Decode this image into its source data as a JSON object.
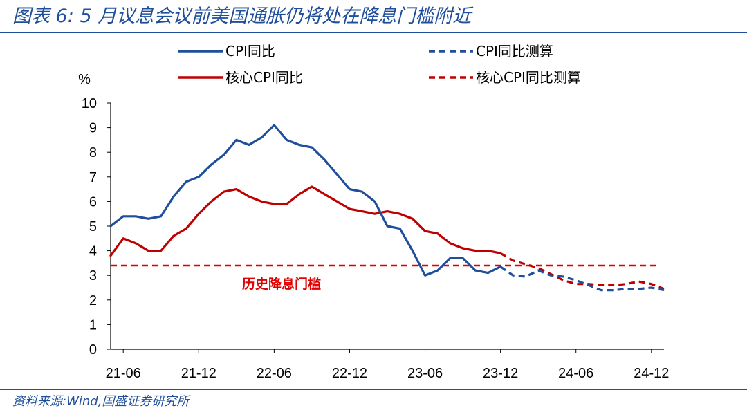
{
  "title": "图表 6:  5 月议息会议前美国通胀仍将处在降息门槛附近",
  "source": "资料来源:Wind,国盛证券研究所",
  "colors": {
    "blue": "#1f4e9b",
    "red": "#c00000",
    "threshold": "#e00000",
    "frame": "#1f4e9b"
  },
  "chart_data": {
    "type": "line",
    "ylabel": "%",
    "ylim": [
      0,
      10
    ],
    "yticks": [
      0,
      1,
      2,
      3,
      4,
      5,
      6,
      7,
      8,
      9,
      10
    ],
    "x": [
      "21-05",
      "21-06",
      "21-07",
      "21-08",
      "21-09",
      "21-10",
      "21-11",
      "21-12",
      "22-01",
      "22-02",
      "22-03",
      "22-04",
      "22-05",
      "22-06",
      "22-07",
      "22-08",
      "22-09",
      "22-10",
      "22-11",
      "22-12",
      "23-01",
      "23-02",
      "23-03",
      "23-04",
      "23-05",
      "23-06",
      "23-07",
      "23-08",
      "23-09",
      "23-10",
      "23-11",
      "23-12",
      "24-01",
      "24-02",
      "24-03",
      "24-04",
      "24-05",
      "24-06",
      "24-07",
      "24-08",
      "24-09",
      "24-10",
      "24-11",
      "24-12",
      "25-01"
    ],
    "xtick_labels": [
      "21-06",
      "21-12",
      "22-06",
      "22-12",
      "23-06",
      "23-12",
      "24-06",
      "24-12"
    ],
    "series": [
      {
        "name": "CPI同比",
        "style": "solid",
        "color": "#1f4e9b",
        "values": [
          5.0,
          5.4,
          5.4,
          5.3,
          5.4,
          6.2,
          6.8,
          7.0,
          7.5,
          7.9,
          8.5,
          8.3,
          8.6,
          9.1,
          8.5,
          8.3,
          8.2,
          7.7,
          7.1,
          6.5,
          6.4,
          6.0,
          5.0,
          4.9,
          4.0,
          3.0,
          3.2,
          3.7,
          3.7,
          3.2,
          3.1,
          3.35,
          null,
          null,
          null,
          null,
          null,
          null,
          null,
          null,
          null,
          null,
          null,
          null,
          null
        ]
      },
      {
        "name": "CPI同比测算",
        "style": "dashed",
        "color": "#1f4e9b",
        "values": [
          null,
          null,
          null,
          null,
          null,
          null,
          null,
          null,
          null,
          null,
          null,
          null,
          null,
          null,
          null,
          null,
          null,
          null,
          null,
          null,
          null,
          null,
          null,
          null,
          null,
          null,
          null,
          null,
          null,
          null,
          null,
          3.35,
          3.0,
          2.95,
          3.2,
          3.0,
          2.95,
          2.8,
          2.6,
          2.4,
          2.4,
          2.45,
          2.45,
          2.5,
          2.4
        ]
      },
      {
        "name": "核心CPI同比",
        "style": "solid",
        "color": "#c00000",
        "values": [
          3.8,
          4.5,
          4.3,
          4.0,
          4.0,
          4.6,
          4.9,
          5.5,
          6.0,
          6.4,
          6.5,
          6.2,
          6.0,
          5.9,
          5.9,
          6.3,
          6.6,
          6.3,
          6.0,
          5.7,
          5.6,
          5.5,
          5.6,
          5.5,
          5.3,
          4.8,
          4.7,
          4.3,
          4.1,
          4.0,
          4.0,
          3.9,
          null,
          null,
          null,
          null,
          null,
          null,
          null,
          null,
          null,
          null,
          null,
          null,
          null
        ]
      },
      {
        "name": "核心CPI同比测算",
        "style": "dashed",
        "color": "#c00000",
        "values": [
          null,
          null,
          null,
          null,
          null,
          null,
          null,
          null,
          null,
          null,
          null,
          null,
          null,
          null,
          null,
          null,
          null,
          null,
          null,
          null,
          null,
          null,
          null,
          null,
          null,
          null,
          null,
          null,
          null,
          null,
          null,
          3.9,
          3.6,
          3.45,
          3.3,
          3.05,
          2.8,
          2.65,
          2.65,
          2.6,
          2.6,
          2.65,
          2.75,
          2.65,
          2.45
        ]
      }
    ],
    "reference_line": {
      "value": 3.4,
      "label": "历史降息门槛",
      "color": "#e00000",
      "style": "dashed"
    },
    "legend_position": "top"
  }
}
